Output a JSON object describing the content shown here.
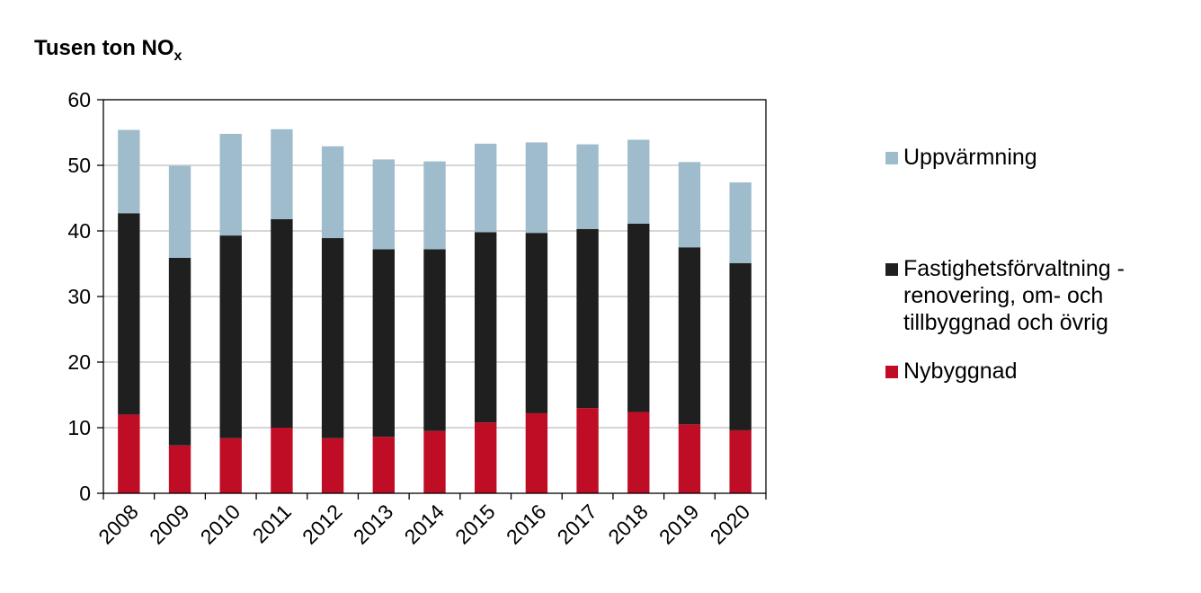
{
  "chart_data": {
    "type": "bar",
    "stacked": true,
    "title": "Tusen ton NO",
    "title_subscript": "x",
    "categories": [
      "2008",
      "2009",
      "2010",
      "2011",
      "2012",
      "2013",
      "2014",
      "2015",
      "2016",
      "2017",
      "2018",
      "2019",
      "2020"
    ],
    "series": [
      {
        "name": "Nybyggnad",
        "color": "#c00d26",
        "values": [
          12.0,
          7.3,
          8.4,
          10.0,
          8.4,
          8.6,
          9.5,
          10.8,
          12.2,
          13.0,
          12.4,
          10.5,
          9.6
        ]
      },
      {
        "name": "Fastighetsförvaltning - renovering, om- och tillbyggnad och övrig",
        "color": "#1f1f1f",
        "values": [
          30.7,
          28.6,
          30.9,
          31.8,
          30.5,
          28.6,
          27.7,
          29.0,
          27.5,
          27.3,
          28.7,
          27.0,
          25.5
        ]
      },
      {
        "name": "Uppvärmning",
        "color": "#9fbccc",
        "values": [
          12.7,
          14.0,
          15.5,
          13.7,
          14.0,
          13.7,
          13.4,
          13.5,
          13.8,
          12.9,
          12.8,
          13.0,
          12.3
        ]
      }
    ],
    "ylim": [
      0,
      60
    ],
    "yticks": [
      0,
      10,
      20,
      30,
      40,
      50,
      60
    ],
    "grid": true,
    "legend_position": "right"
  },
  "legend": [
    {
      "label": "Uppvärmning",
      "color": "#9fbccc"
    },
    {
      "label": "Fastighetsförvaltning - renovering, om- och tillbyggnad och övrig",
      "color": "#1f1f1f"
    },
    {
      "label": "Nybyggnad",
      "color": "#c00d26"
    }
  ]
}
